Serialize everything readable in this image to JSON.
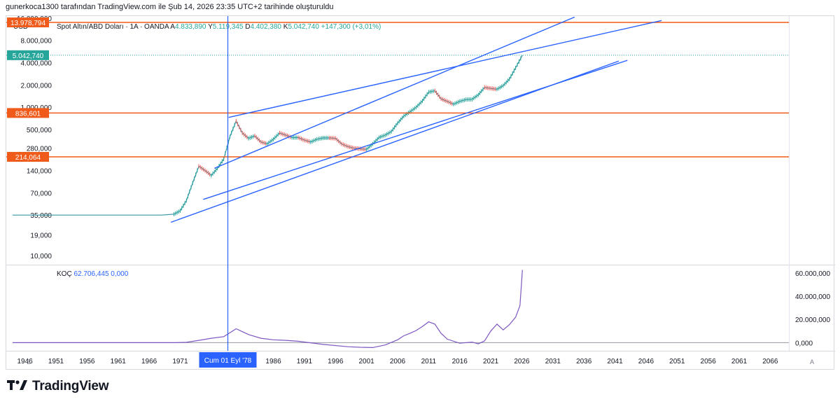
{
  "caption": "gunerkoca1300 tarafından TradingView.com ile Şub 14, 2026 23:35 UTC+2 tarihinde oluşturuldu",
  "brand": {
    "name": "TradingView",
    "logo_icon": "tradingview-logo-icon"
  },
  "colors": {
    "price_line": "#3b97a8",
    "channel": "#2962ff",
    "level": "#f05b1b",
    "last_price_badge": "#26a69a",
    "indicator": "#7e57c2",
    "crosshair": "#2962ff",
    "up": "#26a69a",
    "down": "#ef5350"
  },
  "chart_data": [
    {
      "type": "line",
      "scale": "log",
      "currency": "USD",
      "legend": {
        "symbol": "Spot Altın/ABD Doları · 1A · OANDA",
        "o_label": "A",
        "o": "4.833,890",
        "h_label": "Y",
        "h": "5.119,345",
        "l_label": "D",
        "l": "4.402,380",
        "c_label": "K",
        "c": "5.042,740",
        "change": "+147,300 (+3,01%)"
      },
      "y_ticks": [
        "16.000,000",
        "8.000,000",
        "4.000,000",
        "2.000,000",
        "1.000,000",
        "500,000",
        "280,000",
        "140,000",
        "70,000",
        "35,000",
        "19,000",
        "10,000"
      ],
      "y_tick_values": [
        16000,
        8000,
        4000,
        2000,
        1000,
        500,
        280,
        140,
        70,
        35,
        19,
        10
      ],
      "ylim": [
        7.5,
        17000
      ],
      "x_ticks": [
        "1946",
        "1951",
        "1956",
        "1961",
        "1966",
        "1971",
        "1976",
        "1981",
        "1986",
        "1991",
        "1996",
        "2001",
        "2006",
        "2011",
        "2016",
        "2021",
        "2026",
        "2031",
        "2036",
        "2041",
        "2046",
        "2051",
        "2056",
        "2061",
        "2066"
      ],
      "xlim": [
        1943,
        2069
      ],
      "series": [
        {
          "name": "Spot Altın/ABD Doları",
          "x": [
            1944,
            1950,
            1955,
            1960,
            1965,
            1968,
            1970,
            1971,
            1972,
            1973,
            1974,
            1975,
            1976,
            1977,
            1978,
            1979,
            1980,
            1981,
            1982,
            1983,
            1984,
            1985,
            1986,
            1987,
            1988,
            1989,
            1990,
            1991,
            1992,
            1993,
            1994,
            1995,
            1996,
            1997,
            1998,
            1999,
            2000,
            2001,
            2002,
            2003,
            2004,
            2005,
            2006,
            2007,
            2008,
            2009,
            2010,
            2011,
            2012,
            2013,
            2014,
            2015,
            2016,
            2017,
            2018,
            2019,
            2020,
            2021,
            2022,
            2023,
            2024,
            2025,
            2026.1
          ],
          "values": [
            35,
            35,
            35,
            35,
            35,
            35,
            36,
            40,
            55,
            95,
            160,
            140,
            120,
            150,
            200,
            400,
            650,
            450,
            380,
            410,
            340,
            320,
            370,
            450,
            420,
            390,
            390,
            360,
            340,
            370,
            385,
            385,
            380,
            320,
            295,
            280,
            275,
            270,
            320,
            390,
            420,
            470,
            610,
            760,
            870,
            1000,
            1220,
            1600,
            1670,
            1300,
            1200,
            1100,
            1200,
            1270,
            1280,
            1470,
            1850,
            1800,
            1750,
            1960,
            2400,
            3400,
            5042.74
          ]
        }
      ],
      "levels": [
        {
          "label": "13.978,794",
          "value": 13978.794
        },
        {
          "label": "836,601",
          "value": 836.601
        },
        {
          "label": "214,064",
          "value": 214.064
        }
      ],
      "last_price": {
        "label": "5.042,740",
        "value": 5042.74
      },
      "channel_lines": [
        {
          "x": [
            1976.5,
            2034.5
          ],
          "y": [
            150,
            16500
          ]
        },
        {
          "x": [
            1978.8,
            2048.5
          ],
          "y": [
            730,
            14800
          ]
        },
        {
          "x": [
            1969.5,
            2041.6
          ],
          "y": [
            28,
            4200
          ]
        },
        {
          "x": [
            1974.7,
            2043.0
          ],
          "y": [
            57,
            4300
          ]
        }
      ],
      "crosshair": {
        "x": 1978.67,
        "label": "Cum 01 Eyl '78"
      },
      "left_button": "Z",
      "right_button": "A"
    },
    {
      "type": "line",
      "legend": {
        "name": "KOÇ",
        "value": "62.706,445",
        "zero": "0,000"
      },
      "y_ticks": [
        "60.000,000",
        "40.000,000",
        "20.000,000",
        "0,000"
      ],
      "y_tick_values": [
        60000,
        40000,
        20000,
        0
      ],
      "ylim": [
        -7000,
        66000
      ],
      "series": [
        {
          "name": "KOÇ",
          "x": [
            1944,
            1970,
            1972,
            1974,
            1976,
            1978,
            1979,
            1980,
            1981,
            1982,
            1984,
            1986,
            1988,
            1990,
            1994,
            1998,
            2000,
            2002,
            2004,
            2006,
            2007,
            2008,
            2009,
            2010,
            2011,
            2012,
            2013,
            2014,
            2016,
            2018,
            2019,
            2020,
            2021,
            2022,
            2023,
            2024,
            2025,
            2025.7,
            2026.1
          ],
          "values": [
            0,
            0,
            300,
            2000,
            3800,
            5200,
            8500,
            12000,
            9500,
            7000,
            3800,
            2500,
            2000,
            1200,
            -1500,
            -3500,
            -4000,
            -4200,
            -2000,
            2500,
            6000,
            8000,
            10500,
            14000,
            18000,
            16000,
            8000,
            3000,
            -500,
            500,
            -1000,
            1500,
            10000,
            16000,
            11000,
            15500,
            22000,
            32000,
            62706.445
          ]
        }
      ],
      "zero_line": 0
    }
  ]
}
